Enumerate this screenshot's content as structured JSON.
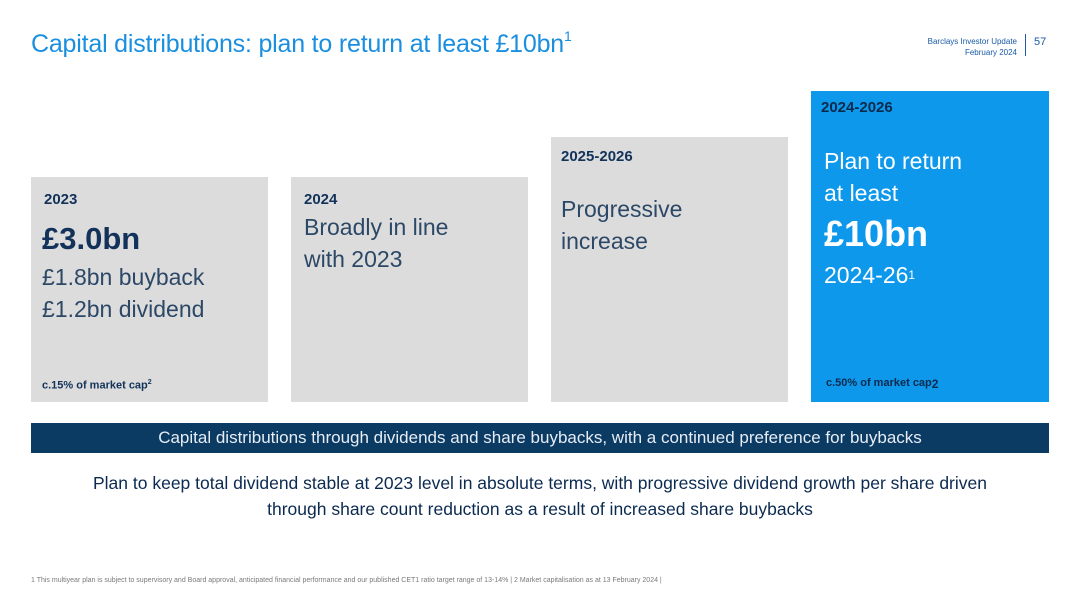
{
  "header": {
    "title": "Capital distributions: plan to return at least £10bn",
    "title_sup": "1",
    "meta_line1": "Barclays Investor Update",
    "meta_line2": "February 2024",
    "page_number": "57"
  },
  "cards": [
    {
      "year": "2023",
      "headline": "£3.0bn",
      "lines": [
        "£1.8bn buyback",
        "£1.2bn dividend"
      ],
      "footer": "c.15% of market cap",
      "footer_sup": "2"
    },
    {
      "year": "2024",
      "lines": [
        "Broadly in line",
        "with 2023"
      ]
    },
    {
      "year": "2025-2026",
      "lines": [
        "Progressive",
        "increase"
      ]
    },
    {
      "year": "2024-2026",
      "lines": [
        "Plan to return",
        "at least"
      ],
      "headline": "£10bn",
      "sub": "2024-26",
      "sub_sup": "1",
      "footer": "c.50% of market cap",
      "footer_sup": "2"
    }
  ],
  "banner": "Capital distributions through dividends and share buybacks, with a continued preference for buybacks",
  "conclusion": {
    "line1": "Plan to keep total dividend stable at 2023 level in absolute terms, with progressive dividend growth per share driven",
    "line2": "through share count reduction as a result of increased share buybacks"
  },
  "footnote": "1 This multiyear plan is subject to supervisory and Board approval, anticipated financial performance and our published CET1 ratio target range of 13-14% | 2 Market capitalisation as at 13 February 2024 |",
  "colors": {
    "title": "#1a8fe0",
    "card_grey": "#dcdcdc",
    "card_blue": "#0d98ec",
    "banner": "#0b3a63",
    "navy_text": "#0b2a50"
  }
}
